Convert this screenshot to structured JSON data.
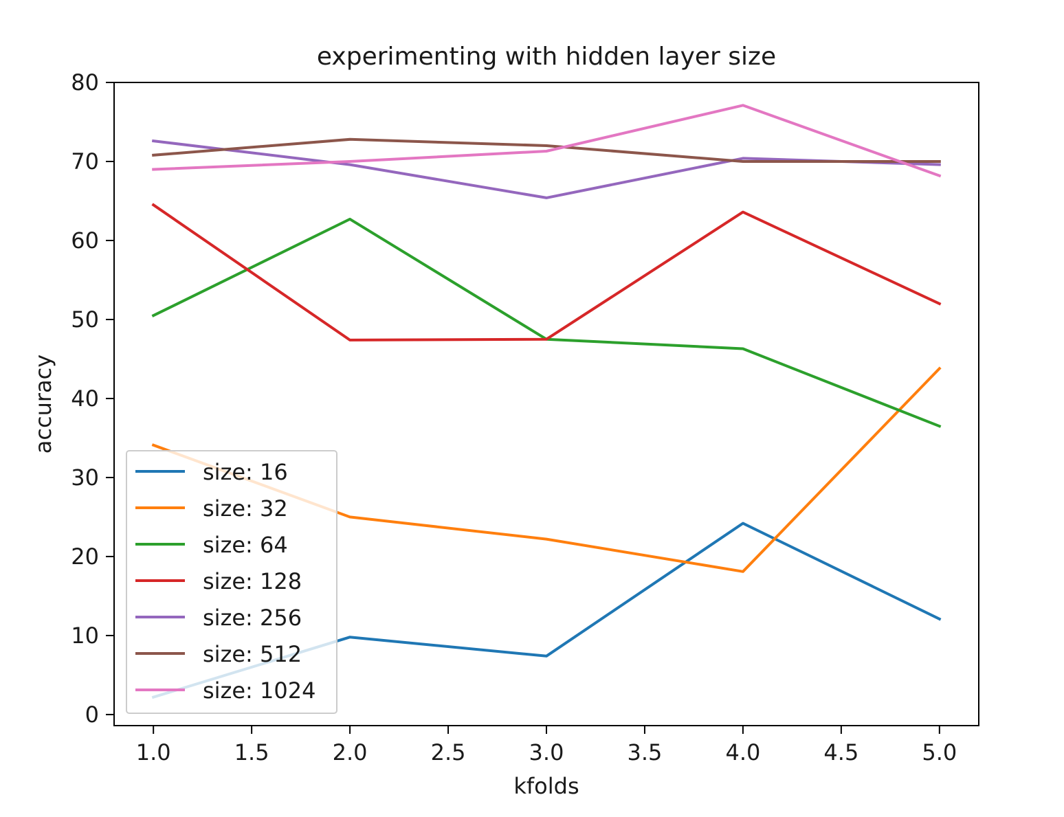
{
  "chart_data": {
    "type": "line",
    "title": "experimenting with hidden layer size",
    "xlabel": "kfolds",
    "ylabel": "accuracy",
    "xlim": [
      0.8,
      5.2
    ],
    "ylim": [
      -1.4,
      80.0
    ],
    "x_ticks": [
      1.0,
      1.5,
      2.0,
      2.5,
      3.0,
      3.5,
      4.0,
      4.5,
      5.0
    ],
    "x_tick_labels": [
      "1.0",
      "1.5",
      "2.0",
      "2.5",
      "3.0",
      "3.5",
      "4.0",
      "4.5",
      "5.0"
    ],
    "y_ticks": [
      0,
      10,
      20,
      30,
      40,
      50,
      60,
      70,
      80
    ],
    "y_tick_labels": [
      "0",
      "10",
      "20",
      "30",
      "40",
      "50",
      "60",
      "70",
      "80"
    ],
    "grid": false,
    "legend_position": "lower-left",
    "x": [
      1,
      2,
      3,
      4,
      5
    ],
    "series": [
      {
        "name": "size: 16",
        "color": "#1f77b4",
        "values": [
          2.2,
          9.8,
          7.4,
          24.2,
          12.1
        ]
      },
      {
        "name": "size: 32",
        "color": "#ff7f0e",
        "values": [
          34.1,
          25.0,
          22.2,
          18.1,
          43.8
        ]
      },
      {
        "name": "size: 64",
        "color": "#2ca02c",
        "values": [
          50.5,
          62.7,
          47.5,
          46.3,
          36.5
        ]
      },
      {
        "name": "size: 128",
        "color": "#d62728",
        "values": [
          64.5,
          47.4,
          47.5,
          63.6,
          52.0
        ]
      },
      {
        "name": "size: 256",
        "color": "#9467bd",
        "values": [
          72.6,
          69.6,
          65.4,
          70.4,
          69.6
        ]
      },
      {
        "name": "size: 512",
        "color": "#8c564b",
        "values": [
          70.8,
          72.8,
          72.0,
          70.0,
          70.0
        ]
      },
      {
        "name": "size: 1024",
        "color": "#e377c2",
        "values": [
          69.0,
          70.0,
          71.3,
          77.1,
          68.2
        ]
      }
    ]
  }
}
